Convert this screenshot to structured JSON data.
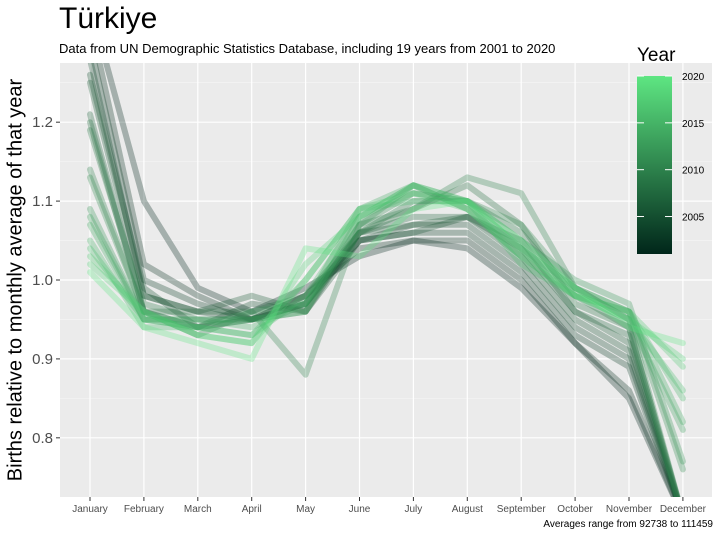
{
  "chart_data": {
    "type": "line",
    "title": "Türkiye",
    "subtitle": "Data from UN Demographic Statistics Database, including 19 years from 2001 to 2020",
    "xlabel": "",
    "ylabel": "Births relative to monthly average of that year",
    "caption": "Averages range from 92738 to 111459",
    "categories": [
      "January",
      "February",
      "March",
      "April",
      "May",
      "June",
      "July",
      "August",
      "September",
      "October",
      "November",
      "December"
    ],
    "ylim": [
      0.725,
      1.275
    ],
    "yticks": [
      "0.8",
      "0.9",
      "1.0",
      "1.1",
      "1.2"
    ],
    "grid": true,
    "legend": {
      "title": "Year",
      "labels": [
        "2005",
        "2010",
        "2015",
        "2020"
      ],
      "placement": "right",
      "color_low": "#00261a",
      "color_high": "#5ee682"
    },
    "series": [
      {
        "year": 2001,
        "values": [
          1.35,
          1.1,
          0.99,
          0.96,
          0.99,
          1.03,
          1.05,
          1.04,
          0.99,
          0.92,
          0.85,
          0.7
        ]
      },
      {
        "year": 2002,
        "values": [
          1.33,
          1.02,
          0.98,
          0.95,
          0.98,
          1.04,
          1.05,
          1.05,
          1.0,
          0.92,
          0.86,
          0.7
        ]
      },
      {
        "year": 2003,
        "values": [
          1.3,
          1.0,
          0.97,
          0.95,
          0.98,
          1.05,
          1.06,
          1.06,
          1.01,
          0.93,
          0.89,
          0.7
        ]
      },
      {
        "year": 2004,
        "values": [
          1.28,
          0.98,
          0.96,
          0.95,
          0.97,
          1.05,
          1.07,
          1.07,
          1.02,
          0.94,
          0.9,
          0.7
        ]
      },
      {
        "year": 2005,
        "values": [
          1.26,
          0.99,
          0.94,
          0.97,
          0.96,
          1.05,
          1.06,
          1.08,
          1.03,
          0.95,
          0.91,
          0.7
        ]
      },
      {
        "year": 2006,
        "values": [
          1.25,
          0.98,
          0.96,
          0.98,
          0.96,
          1.06,
          1.07,
          1.08,
          1.04,
          0.96,
          0.92,
          0.7
        ]
      },
      {
        "year": 2007,
        "values": [
          1.21,
          0.96,
          0.94,
          0.95,
          0.97,
          1.06,
          1.08,
          1.08,
          1.05,
          0.96,
          0.93,
          0.7
        ]
      },
      {
        "year": 2008,
        "values": [
          1.2,
          0.96,
          0.96,
          0.96,
          0.98,
          1.06,
          1.09,
          1.12,
          1.07,
          0.97,
          0.94,
          0.7
        ]
      },
      {
        "year": 2009,
        "values": [
          1.19,
          0.97,
          0.95,
          0.95,
          0.97,
          1.06,
          1.1,
          1.1,
          1.06,
          0.98,
          0.94,
          0.7
        ]
      },
      {
        "year": 2010,
        "values": [
          1.14,
          0.96,
          0.93,
          0.96,
          0.88,
          1.07,
          1.09,
          1.13,
          1.11,
          0.99,
          0.95,
          0.7
        ]
      },
      {
        "year": 2011,
        "values": [
          1.13,
          0.96,
          0.94,
          0.95,
          0.96,
          1.07,
          1.11,
          1.1,
          1.07,
          0.99,
          0.96,
          0.76
        ]
      },
      {
        "year": 2012,
        "values": [
          1.09,
          0.95,
          0.94,
          0.96,
          0.97,
          1.07,
          1.12,
          1.1,
          1.05,
          1.0,
          0.97,
          0.77
        ]
      },
      {
        "year": 2013,
        "values": [
          1.08,
          0.95,
          0.95,
          0.95,
          0.96,
          1.08,
          1.12,
          1.09,
          1.04,
          0.99,
          0.95,
          0.81
        ]
      },
      {
        "year": 2014,
        "values": [
          1.07,
          0.95,
          0.95,
          0.94,
          0.97,
          1.09,
          1.12,
          1.09,
          1.03,
          0.98,
          0.96,
          0.82
        ]
      },
      {
        "year": 2015,
        "values": [
          1.05,
          0.94,
          0.94,
          0.93,
          0.98,
          1.08,
          1.11,
          1.1,
          1.04,
          0.99,
          0.96,
          0.85
        ]
      },
      {
        "year": 2016,
        "values": [
          1.04,
          0.95,
          0.94,
          0.93,
          1.0,
          1.09,
          1.1,
          1.1,
          1.02,
          0.98,
          0.95,
          0.86
        ]
      },
      {
        "year": 2017,
        "values": [
          1.03,
          0.96,
          0.93,
          0.92,
          1.0,
          1.09,
          1.11,
          1.09,
          1.03,
          0.98,
          0.96,
          0.89
        ]
      },
      {
        "year": 2018,
        "values": [
          1.02,
          0.96,
          0.93,
          0.92,
          1.02,
          1.08,
          1.12,
          1.1,
          1.04,
          0.98,
          0.95,
          0.9
        ]
      },
      {
        "year": 2020,
        "values": [
          1.01,
          0.94,
          0.92,
          0.9,
          1.04,
          1.03,
          1.09,
          1.1,
          1.05,
          0.99,
          0.94,
          0.92
        ]
      }
    ]
  }
}
